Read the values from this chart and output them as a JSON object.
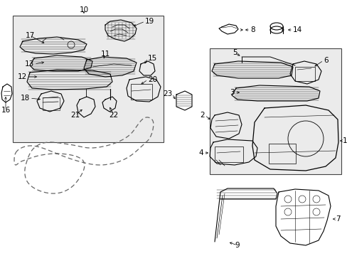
{
  "background": "#ffffff",
  "box1_color": "#e8e8e8",
  "box2_color": "#e8e8e8",
  "fig_w": 4.89,
  "fig_h": 3.6,
  "dpi": 100
}
